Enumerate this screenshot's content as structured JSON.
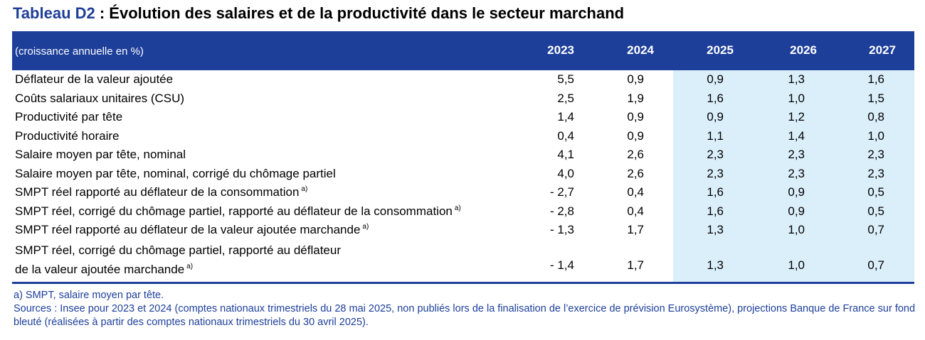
{
  "title": {
    "code": "Tableau D2",
    "text": " : Évolution des salaires et de la productivité dans le secteur marchand"
  },
  "header": {
    "unit": "(croissance annuelle en %)",
    "years": [
      "2023",
      "2024",
      "2025",
      "2026",
      "2027"
    ]
  },
  "rows": [
    {
      "label": "Déflateur de la valeur ajoutée",
      "note": "",
      "values": [
        "5,5",
        "0,9",
        "0,9",
        "1,3",
        "1,6"
      ]
    },
    {
      "label": "Coûts salariaux unitaires (CSU)",
      "note": "",
      "values": [
        "2,5",
        "1,9",
        "1,6",
        "1,0",
        "1,5"
      ]
    },
    {
      "label": "Productivité par tête",
      "note": "",
      "values": [
        "1,4",
        "0,9",
        "0,9",
        "1,2",
        "0,8"
      ]
    },
    {
      "label": "Productivité horaire",
      "note": "",
      "values": [
        "0,4",
        "0,9",
        "1,1",
        "1,4",
        "1,0"
      ]
    },
    {
      "label": "Salaire moyen par tête, nominal",
      "note": "",
      "values": [
        "4,1",
        "2,6",
        "2,3",
        "2,3",
        "2,3"
      ]
    },
    {
      "label": "Salaire moyen par tête, nominal, corrigé du chômage partiel",
      "note": "",
      "values": [
        "4,0",
        "2,6",
        "2,3",
        "2,3",
        "2,3"
      ]
    },
    {
      "label": "SMPT réel rapporté au déflateur de la consommation",
      "note": "a)",
      "values": [
        "- 2,7",
        "0,4",
        "1,6",
        "0,9",
        "0,5"
      ]
    },
    {
      "label": "SMPT réel, corrigé du chômage partiel, rapporté au déflateur de la consommation",
      "note": "a)",
      "values": [
        "- 2,8",
        "0,4",
        "1,6",
        "0,9",
        "0,5"
      ]
    },
    {
      "label": "SMPT réel rapporté au déflateur de la valeur ajoutée marchande",
      "note": "a)",
      "values": [
        "- 1,3",
        "1,7",
        "1,3",
        "1,0",
        "0,7"
      ]
    },
    {
      "label_line1": "SMPT réel, corrigé du chômage partiel, rapporté au déflateur",
      "label_line2": "de la valeur ajoutée marchande",
      "note": "a)",
      "values": [
        "- 1,4",
        "1,7",
        "1,3",
        "1,0",
        "0,7"
      ]
    }
  ],
  "notes": {
    "footnote": "a)  SMPT, salaire moyen par tête.",
    "sources": "Sources : Insee pour 2023 et 2024 (comptes nationaux trimestriels du 28 mai 2025, non publiés lors de la finalisation de l’exercice de prévision Eurosystème), projections Banque de France sur fond bleuté (réalisées à partir des comptes nationaux trimestriels du 30 avril 2025)."
  },
  "colors": {
    "header_bg": "#1d3f9a",
    "projection_bg": "#dbeffb",
    "notes_text": "#1d3f9a"
  }
}
